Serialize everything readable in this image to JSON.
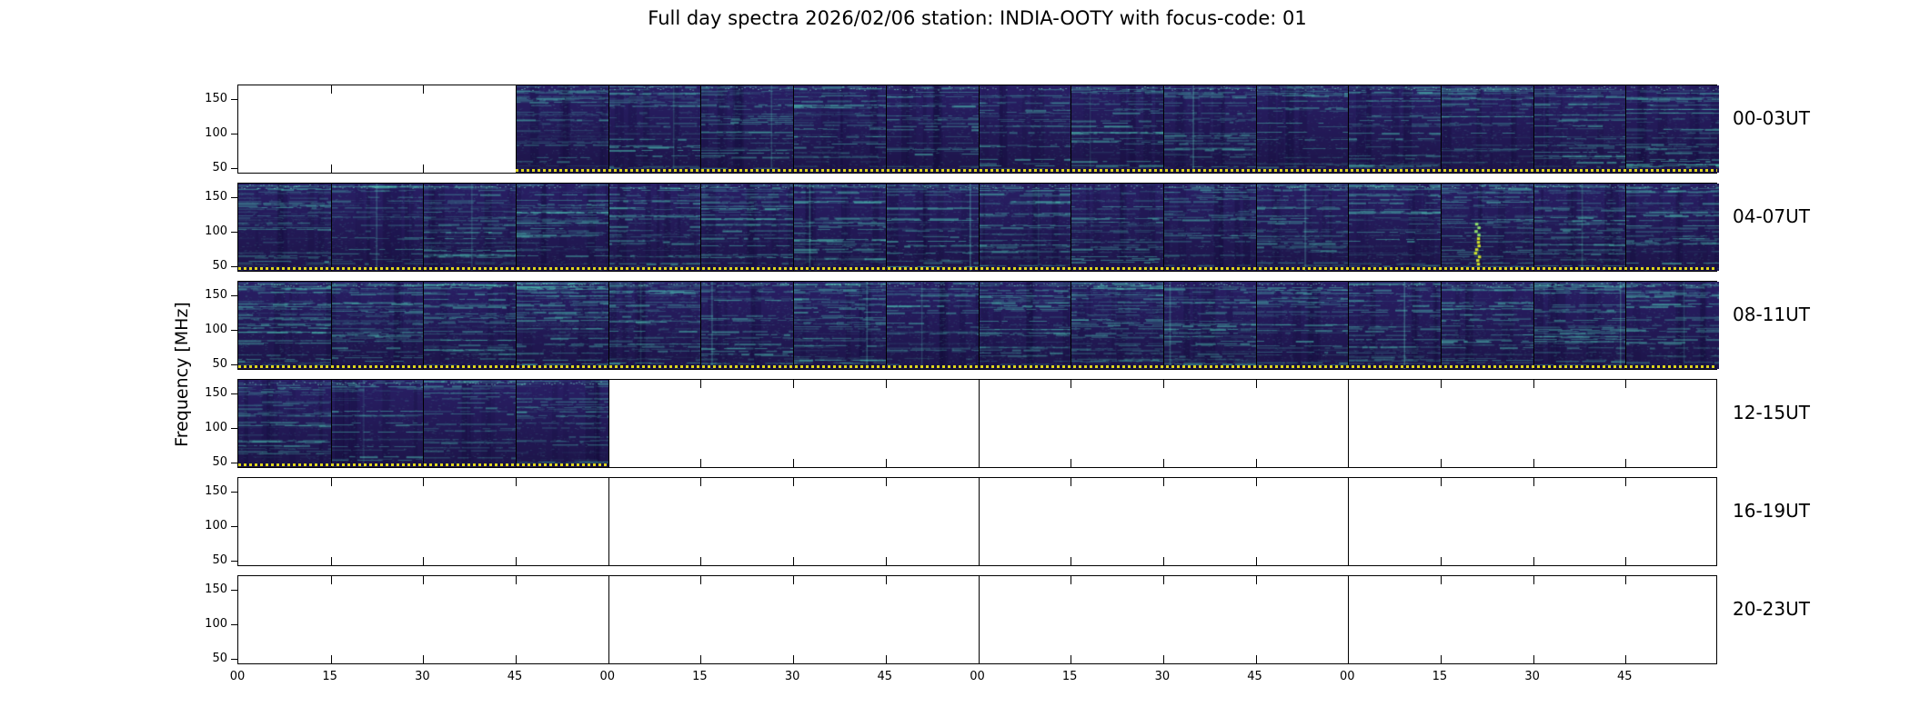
{
  "title": "Full day spectra 2026/02/06 station: INDIA-OOTY with focus-code: 01",
  "ylabel": "Frequency [MHz]",
  "y_ticks": [
    "150",
    "100",
    "50"
  ],
  "x_ticks": [
    "00",
    "15",
    "30",
    "45",
    "00",
    "15",
    "30",
    "45",
    "00",
    "15",
    "30",
    "45",
    "00",
    "15",
    "30",
    "45"
  ],
  "rows": [
    {
      "label": "00-03UT",
      "data_start": 3,
      "data_end": 16,
      "bright_segment": -1
    },
    {
      "label": "04-07UT",
      "data_start": 0,
      "data_end": 16,
      "bright_segment": 13
    },
    {
      "label": "08-11UT",
      "data_start": 0,
      "data_end": 16,
      "bright_segment": -1
    },
    {
      "label": "12-15UT",
      "data_start": 0,
      "data_end": 4,
      "bright_segment": -1
    },
    {
      "label": "16-19UT",
      "data_start": 0,
      "data_end": 0,
      "bright_segment": -1
    },
    {
      "label": "20-23UT",
      "data_start": 0,
      "data_end": 0,
      "bright_segment": -1
    }
  ],
  "colors": {
    "spectra_base": "#2b2060",
    "spectra_streak": "#50d7be",
    "bright_feature": "#cfe32a",
    "marker_dots": "#ddd51d",
    "axis": "#000000"
  },
  "chart_data": {
    "type": "heatmap",
    "title": "Full day spectra 2026/02/06 station: INDIA-OOTY with focus-code: 01",
    "station": "INDIA-OOTY",
    "date": "2026/02/06",
    "focus_code": "01",
    "ylabel": "Frequency [MHz]",
    "y_ticks": [
      50,
      100,
      150
    ],
    "ylim": [
      41,
      170
    ],
    "colormap": "viridis",
    "segment_minutes": 15,
    "segments_per_row": 16,
    "row_duration_hours": 4,
    "x_tick_labels_per_hour": [
      "00",
      "15",
      "30",
      "45"
    ],
    "rows": [
      {
        "time_range": "00-03UT",
        "segments_with_data_from": 3,
        "segments_with_data_to": 16,
        "coverage": "00:45-03:59 UT has spectra; 00:00-00:45 blank"
      },
      {
        "time_range": "04-07UT",
        "segments_with_data_from": 0,
        "segments_with_data_to": 16,
        "coverage": "full row has spectra; bright narrow-band burst near 07:15"
      },
      {
        "time_range": "08-11UT",
        "segments_with_data_from": 0,
        "segments_with_data_to": 16,
        "coverage": "full row has spectra"
      },
      {
        "time_range": "12-15UT",
        "segments_with_data_from": 0,
        "segments_with_data_to": 4,
        "coverage": "12:00-13:00 UT has spectra; rest blank"
      },
      {
        "time_range": "16-19UT",
        "segments_with_data_from": 0,
        "segments_with_data_to": 0,
        "coverage": "no data"
      },
      {
        "time_range": "20-23UT",
        "segments_with_data_from": 0,
        "segments_with_data_to": 0,
        "coverage": "no data"
      }
    ],
    "legend": "none",
    "grid": "off"
  }
}
